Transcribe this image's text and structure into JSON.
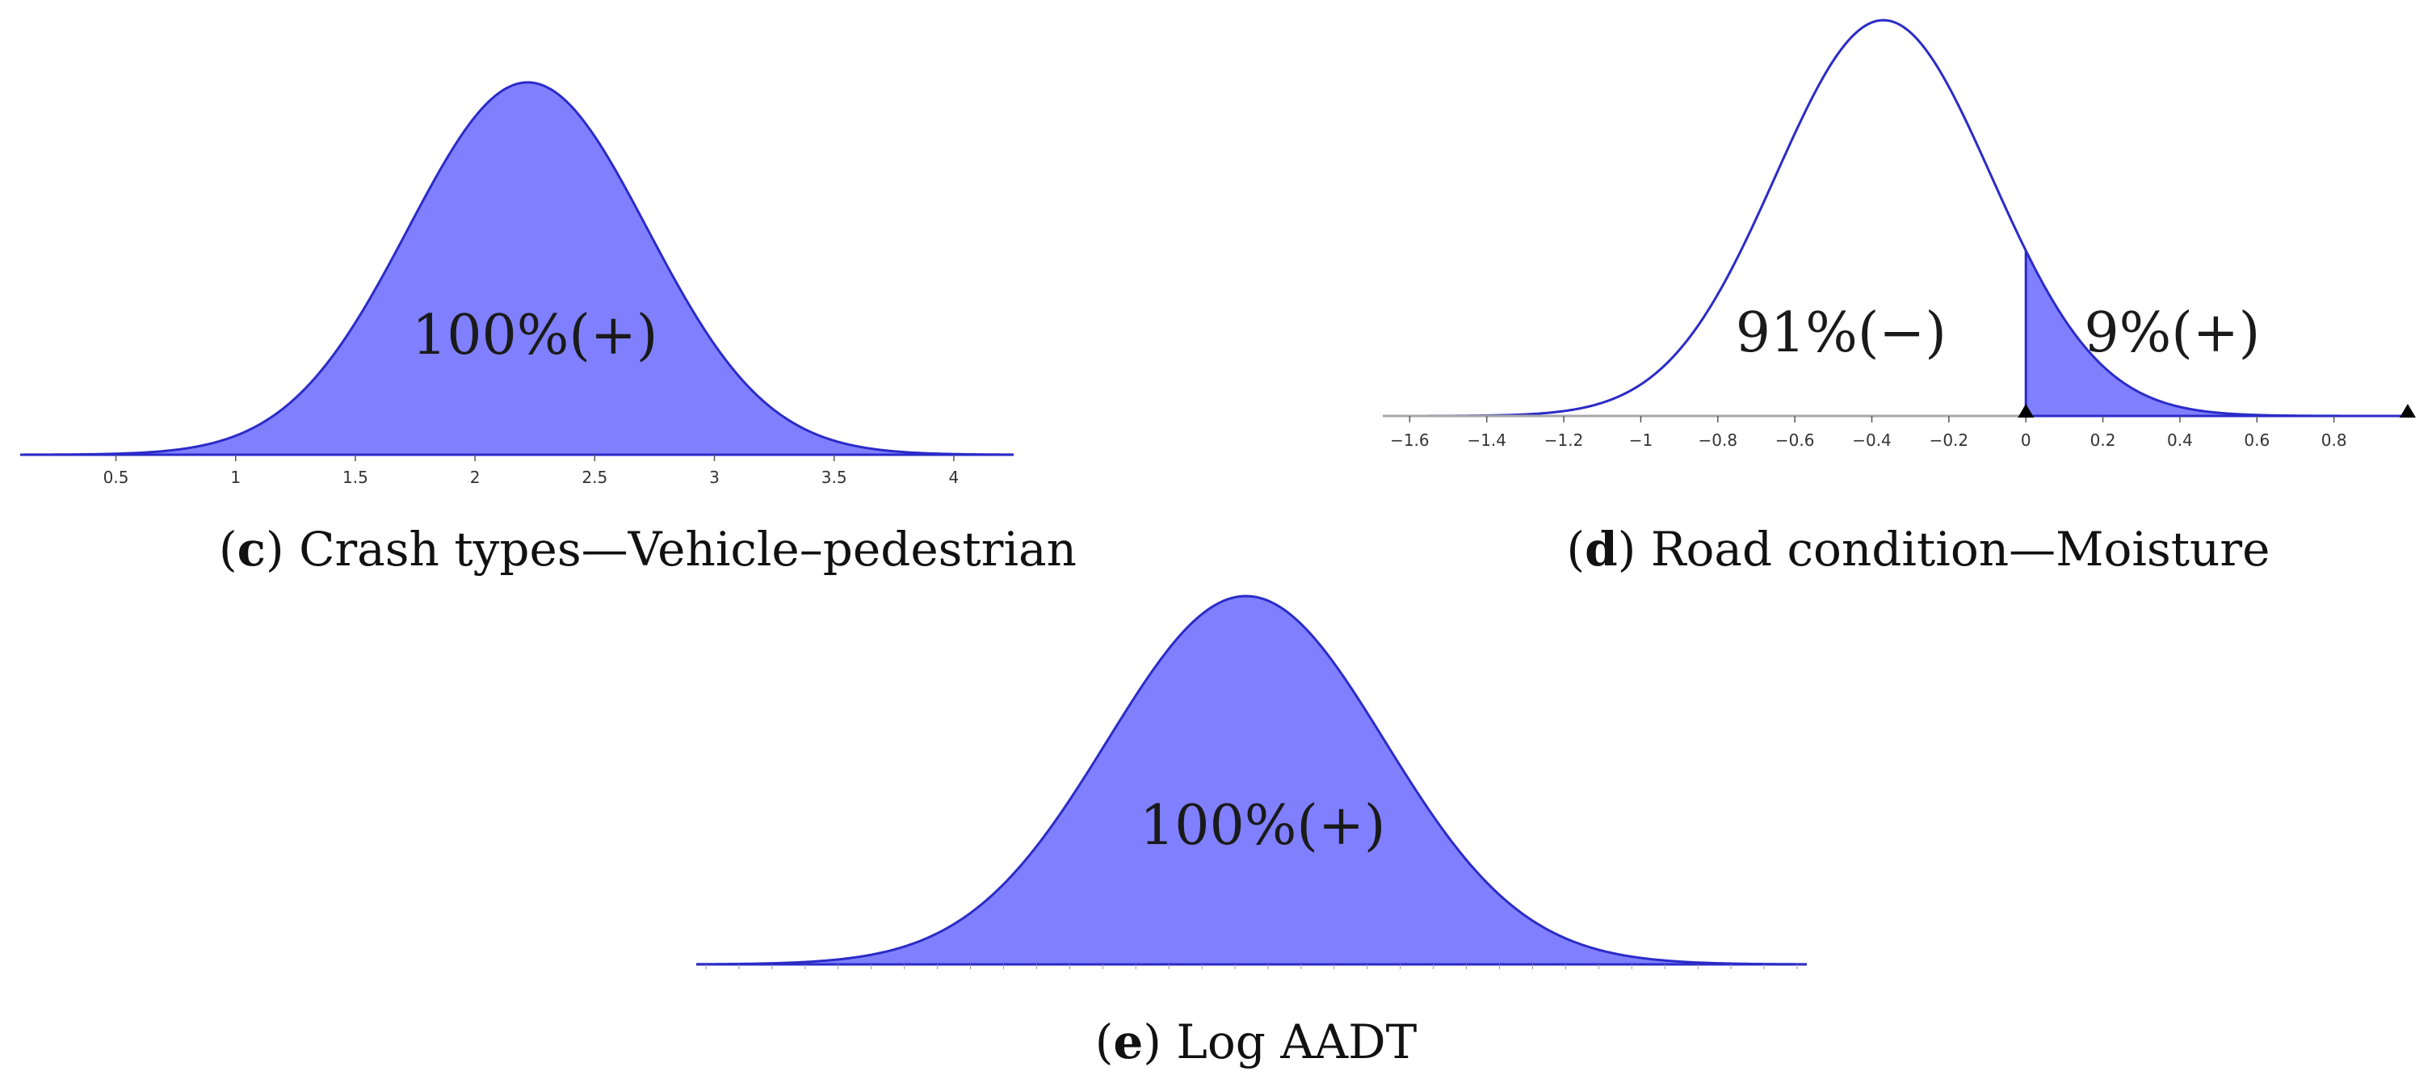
{
  "chart_data": [
    {
      "id": "c",
      "type": "area",
      "distribution": "normal",
      "mean": 2.22,
      "sd": 0.5,
      "xlim": [
        0.1,
        4.25
      ],
      "ticks": [
        0.5,
        1,
        1.5,
        2,
        2.5,
        3,
        3.5,
        4
      ],
      "tick_labels": [
        "0.5",
        "1",
        "1.5",
        "2",
        "2.5",
        "3",
        "3.5",
        "4"
      ],
      "shaded_from": 0.1,
      "regions": [
        {
          "label": "100%(+)",
          "x": 2.25
        }
      ],
      "caption_letter": "c",
      "caption_text": "Crash types—Vehicle–pedestrian",
      "colors": {
        "fill": "#8080ff",
        "line": "#2b2bc8"
      }
    },
    {
      "id": "d",
      "type": "area",
      "distribution": "normal",
      "mean": -0.37,
      "sd": 0.28,
      "xlim": [
        -1.67,
        1.0
      ],
      "ticks": [
        -1.6,
        -1.4,
        -1.2,
        -1,
        -0.8,
        -0.6,
        -0.4,
        -0.2,
        0,
        0.2,
        0.4,
        0.6,
        0.8
      ],
      "tick_labels": [
        "−1.6",
        "−1.4",
        "−1.2",
        "−1",
        "−0.8",
        "−0.6",
        "−0.4",
        "−0.2",
        "0",
        "0.2",
        "0.4",
        "0.6",
        "0.8"
      ],
      "shaded_from": 0,
      "regions": [
        {
          "label": "91%(−)",
          "x": -0.48
        },
        {
          "label": "9%(+)",
          "x": 0.38
        }
      ],
      "caption_letter": "d",
      "caption_text": "Road condition—Moisture",
      "colors": {
        "fill": "#8080ff",
        "line": "#2b2bc8"
      }
    },
    {
      "id": "e",
      "type": "area",
      "distribution": "normal",
      "mean": 0.495,
      "sd": 0.125,
      "xlim": [
        0.0,
        1.0
      ],
      "ticks": [],
      "tick_labels": [],
      "shaded_from": 0.0,
      "regions": [
        {
          "label": "100%(+)",
          "x": 0.51
        }
      ],
      "caption_letter": "e",
      "caption_text": "Log AADT",
      "colors": {
        "fill": "#8080ff",
        "line": "#2b2bc8"
      }
    }
  ]
}
